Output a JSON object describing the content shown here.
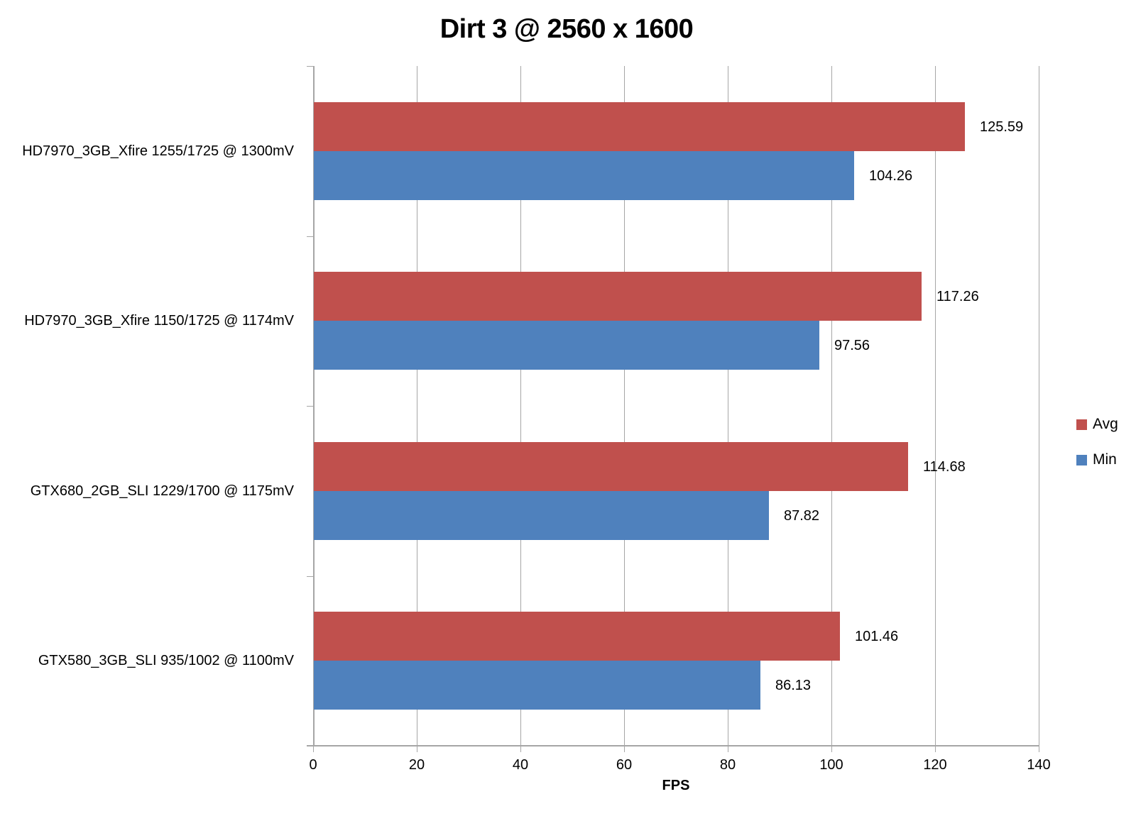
{
  "chart_data": {
    "type": "bar",
    "orientation": "horizontal",
    "title": "Dirt 3 @ 2560 x 1600",
    "xlabel": "FPS",
    "xlim": [
      0,
      140
    ],
    "xticks": [
      0,
      20,
      40,
      60,
      80,
      100,
      120,
      140
    ],
    "grid": true,
    "legend_position": "right",
    "value_label_decimals": 2,
    "categories": [
      "HD7970_3GB_Xfire 1255/1725 @ 1300mV",
      "HD7970_3GB_Xfire 1150/1725 @ 1174mV",
      "GTX680_2GB_SLI 1229/1700 @ 1175mV",
      "GTX580_3GB_SLI 935/1002 @ 1100mV"
    ],
    "series": [
      {
        "name": "Avg",
        "color": "#c0504d",
        "values": [
          125.59,
          117.26,
          114.68,
          101.46
        ]
      },
      {
        "name": "Min",
        "color": "#4f81bd",
        "values": [
          104.26,
          97.56,
          87.82,
          86.13
        ]
      }
    ],
    "axis_color": "#a6a6a6"
  }
}
